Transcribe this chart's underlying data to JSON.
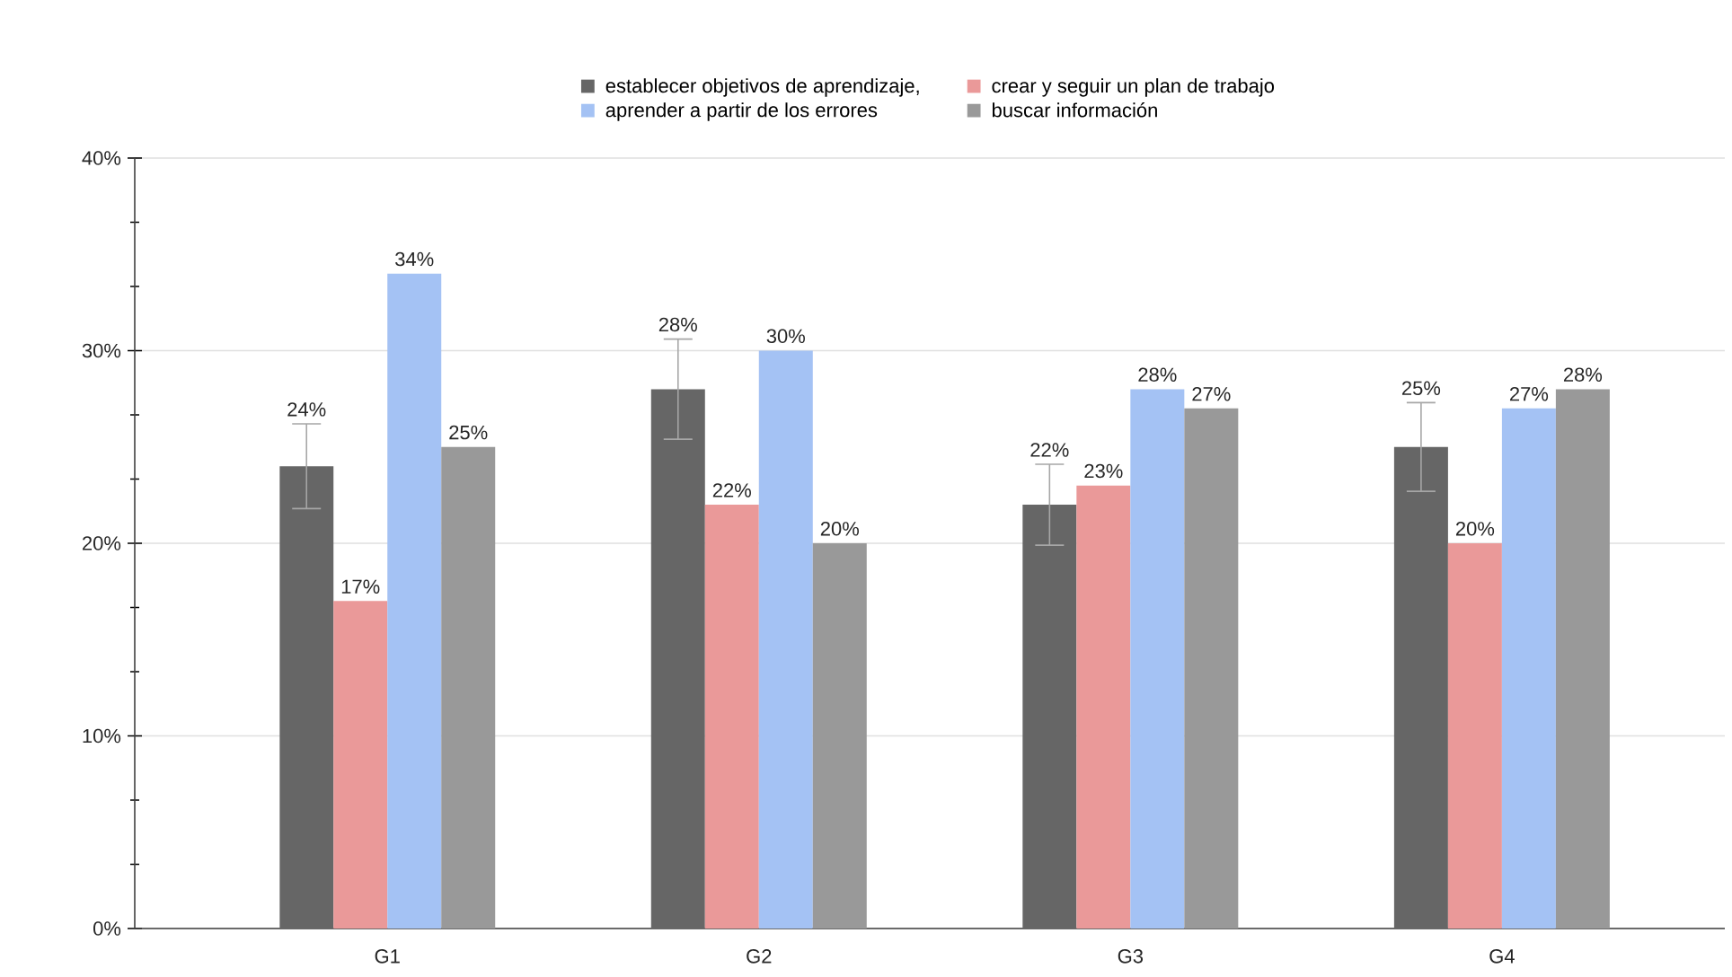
{
  "chart_data": {
    "type": "bar",
    "categories": [
      "G1",
      "G2",
      "G3",
      "G4"
    ],
    "series": [
      {
        "name": "establecer objetivos de aprendizaje,",
        "color": "#666666",
        "values": [
          24,
          28,
          22,
          25
        ],
        "errors": [
          2.2,
          2.6,
          2.1,
          2.3
        ],
        "value_labels": [
          "24%",
          "28%",
          "22%",
          "25%"
        ]
      },
      {
        "name": "crear y seguir un plan de trabajo",
        "color": "#ea9999",
        "values": [
          17,
          22,
          23,
          20
        ],
        "value_labels": [
          "17%",
          "22%",
          "23%",
          "20%"
        ]
      },
      {
        "name": "aprender a partir de los errores",
        "color": "#a4c2f4",
        "values": [
          34,
          30,
          28,
          27
        ],
        "value_labels": [
          "34%",
          "30%",
          "28%",
          "27%"
        ]
      },
      {
        "name": "buscar información",
        "color": "#999999",
        "values": [
          25,
          20,
          27,
          28
        ],
        "value_labels": [
          "25%",
          "20%",
          "27%",
          "28%"
        ]
      }
    ],
    "ylim": [
      0,
      40
    ],
    "yticks": [
      {
        "value": 0,
        "label": "0%"
      },
      {
        "value": 10,
        "label": "10%"
      },
      {
        "value": 20,
        "label": "20%"
      },
      {
        "value": 30,
        "label": "30%"
      },
      {
        "value": 40,
        "label": "40%"
      }
    ],
    "grid": "y",
    "legend": "top"
  }
}
